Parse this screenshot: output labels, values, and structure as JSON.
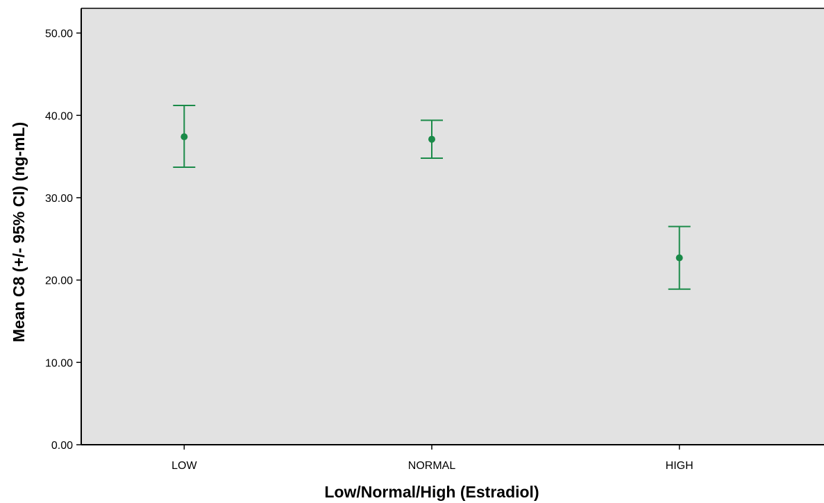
{
  "chart_data": {
    "type": "errorbar",
    "title": "",
    "xlabel": "Low/Normal/High (Estradiol)",
    "ylabel": "Mean C8 (+/- 95% CI) (ng-mL)",
    "categories": [
      "LOW",
      "NORMAL",
      "HIGH"
    ],
    "series": [
      {
        "means": [
          37.4,
          37.1,
          22.7
        ],
        "ci_lower": [
          33.7,
          34.8,
          18.9
        ],
        "ci_upper": [
          41.2,
          39.4,
          26.5
        ]
      }
    ],
    "ylim": [
      0,
      53
    ],
    "yticks": [
      0,
      10,
      20,
      30,
      40,
      50
    ],
    "ytick_labels": [
      "0.00",
      "10.00",
      "20.00",
      "30.00",
      "40.00",
      "50.00"
    ],
    "grid": false,
    "legend": "none",
    "colors": {
      "plot_background": "#e2e2e2",
      "series": "#1a8a48",
      "axis": "#000000"
    }
  }
}
